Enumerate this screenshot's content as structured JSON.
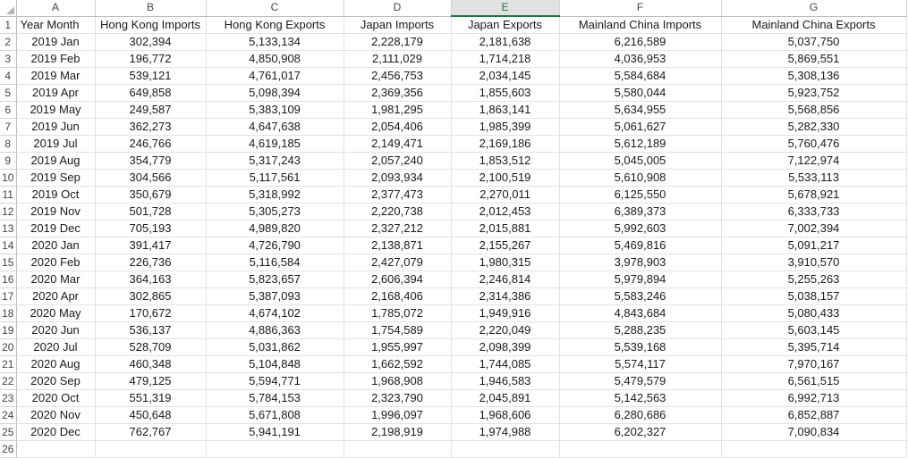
{
  "column_letters": [
    "A",
    "B",
    "C",
    "D",
    "E",
    "F",
    "G"
  ],
  "selected_column": "E",
  "rows": [
    [
      "Year Month",
      "Hong Kong Imports",
      "Hong Kong Exports",
      "Japan Imports",
      "Japan Exports",
      "Mainland China Imports",
      "Mainland China Exports"
    ],
    [
      "2019 Jan",
      "302,394",
      "5,133,134",
      "2,228,179",
      "2,181,638",
      "6,216,589",
      "5,037,750"
    ],
    [
      "2019 Feb",
      "196,772",
      "4,850,908",
      "2,111,029",
      "1,714,218",
      "4,036,953",
      "5,869,551"
    ],
    [
      "2019 Mar",
      "539,121",
      "4,761,017",
      "2,456,753",
      "2,034,145",
      "5,584,684",
      "5,308,136"
    ],
    [
      "2019 Apr",
      "649,858",
      "5,098,394",
      "2,369,356",
      "1,855,603",
      "5,580,044",
      "5,923,752"
    ],
    [
      "2019 May",
      "249,587",
      "5,383,109",
      "1,981,295",
      "1,863,141",
      "5,634,955",
      "5,568,856"
    ],
    [
      "2019 Jun",
      "362,273",
      "4,647,638",
      "2,054,406",
      "1,985,399",
      "5,061,627",
      "5,282,330"
    ],
    [
      "2019 Jul",
      "246,766",
      "4,619,185",
      "2,149,471",
      "2,169,186",
      "5,612,189",
      "5,760,476"
    ],
    [
      "2019 Aug",
      "354,779",
      "5,317,243",
      "2,057,240",
      "1,853,512",
      "5,045,005",
      "7,122,974"
    ],
    [
      "2019 Sep",
      "304,566",
      "5,117,561",
      "2,093,934",
      "2,100,519",
      "5,610,908",
      "5,533,113"
    ],
    [
      "2019 Oct",
      "350,679",
      "5,318,992",
      "2,377,473",
      "2,270,011",
      "6,125,550",
      "5,678,921"
    ],
    [
      "2019 Nov",
      "501,728",
      "5,305,273",
      "2,220,738",
      "2,012,453",
      "6,389,373",
      "6,333,733"
    ],
    [
      "2019 Dec",
      "705,193",
      "4,989,820",
      "2,327,212",
      "2,015,881",
      "5,992,603",
      "7,002,394"
    ],
    [
      "2020 Jan",
      "391,417",
      "4,726,790",
      "2,138,871",
      "2,155,267",
      "5,469,816",
      "5,091,217"
    ],
    [
      "2020 Feb",
      "226,736",
      "5,116,584",
      "2,427,079",
      "1,980,315",
      "3,978,903",
      "3,910,570"
    ],
    [
      "2020 Mar",
      "364,163",
      "5,823,657",
      "2,606,394",
      "2,246,814",
      "5,979,894",
      "5,255,263"
    ],
    [
      "2020 Apr",
      "302,865",
      "5,387,093",
      "2,168,406",
      "2,314,386",
      "5,583,246",
      "5,038,157"
    ],
    [
      "2020 May",
      "170,672",
      "4,674,102",
      "1,785,072",
      "1,949,916",
      "4,843,684",
      "5,080,433"
    ],
    [
      "2020 Jun",
      "536,137",
      "4,886,363",
      "1,754,589",
      "2,220,049",
      "5,288,235",
      "5,603,145"
    ],
    [
      "2020 Jul",
      "528,709",
      "5,031,862",
      "1,955,997",
      "2,098,399",
      "5,539,168",
      "5,395,714"
    ],
    [
      "2020 Aug",
      "460,348",
      "5,104,848",
      "1,662,592",
      "1,744,085",
      "5,574,117",
      "7,970,167"
    ],
    [
      "2020 Sep",
      "479,125",
      "5,594,771",
      "1,968,908",
      "1,946,583",
      "5,479,579",
      "6,561,515"
    ],
    [
      "2020 Oct",
      "551,319",
      "5,784,153",
      "2,323,790",
      "2,045,891",
      "5,142,563",
      "6,992,713"
    ],
    [
      "2020 Nov",
      "450,648",
      "5,671,808",
      "1,996,097",
      "1,968,606",
      "6,280,686",
      "6,852,887"
    ],
    [
      "2020 Dec",
      "762,767",
      "5,941,191",
      "2,198,919",
      "1,974,988",
      "6,202,327",
      "7,090,834"
    ]
  ],
  "partial_row_number": "26"
}
